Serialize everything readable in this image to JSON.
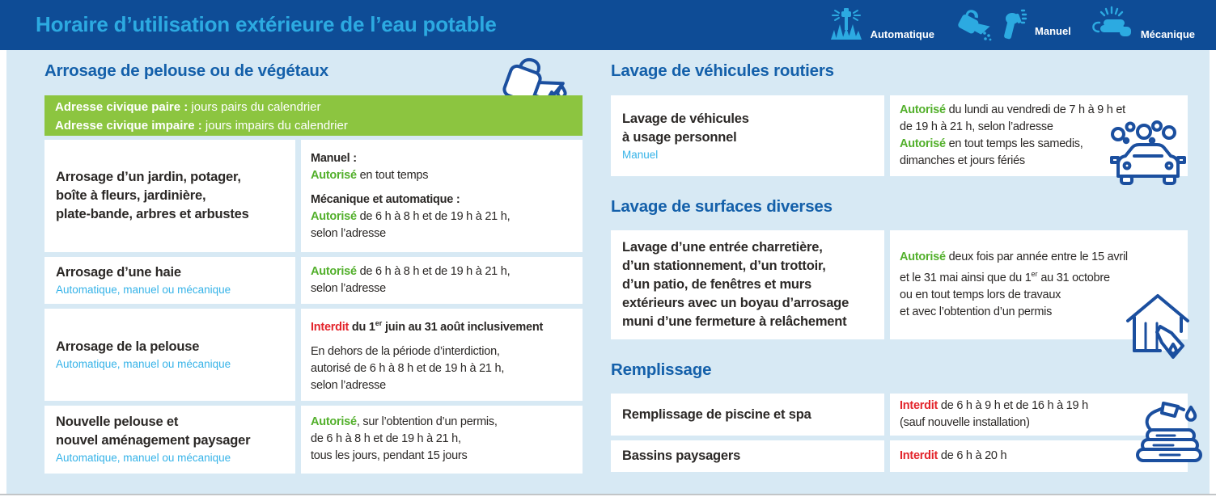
{
  "header": {
    "title": "Horaire d’utilisation extérieure de l’eau potable",
    "legend": [
      {
        "icon": "sprinkler-icon",
        "label": "Automatique"
      },
      {
        "icon": "watering-can-nozzle-icon",
        "label": "Manuel"
      },
      {
        "icon": "hose-reel-icon",
        "label": "Mécanique"
      }
    ]
  },
  "colors": {
    "header_bg": "#0E4C96",
    "title_blue": "#2CAAE1",
    "section_title_blue": "#1460AA",
    "background_blue": "#D7E9F4",
    "banner_green": "#8CC540",
    "allowed_green": "#53B02C",
    "forbidden_red": "#E3242B",
    "text_dark": "#2B2826",
    "mode_blue": "#36B3E8",
    "icon_navy": "#1B4F9F"
  },
  "sections": {
    "arrosage": {
      "title": "Arrosage de pelouse ou de végétaux",
      "icon": "watering-can-icon",
      "banner": [
        {
          "bold": "Adresse civique paire :",
          "text": " jours pairs du calendrier"
        },
        {
          "bold": "Adresse civique impaire :",
          "text": " jours impairs du calendrier"
        }
      ],
      "rows": [
        {
          "title": "Arrosage d’un jardin, potager,\nboîte à fleurs, jardinière,\nplate-bande, arbres et arbustes",
          "subtitle": "",
          "blocks": [
            [
              {
                "s": "b",
                "t": "Manuel :"
              },
              {
                "t": "\n"
              },
              {
                "s": "g",
                "t": "Autorisé"
              },
              {
                "t": " en tout temps"
              }
            ],
            [
              {
                "s": "b",
                "t": "Mécanique et automatique :"
              },
              {
                "t": "\n"
              },
              {
                "s": "g",
                "t": "Autorisé"
              },
              {
                "t": " de 6 h à 8 h et de 19 h à 21 h,\nselon l’adresse"
              }
            ]
          ]
        },
        {
          "title": "Arrosage d’une haie",
          "subtitle": "Automatique, manuel ou mécanique",
          "blocks": [
            [
              {
                "s": "g",
                "t": "Autorisé"
              },
              {
                "t": " de 6 h à 8 h et de 19 h à 21 h,\nselon l’adresse"
              }
            ]
          ]
        },
        {
          "title": "Arrosage de la pelouse",
          "subtitle": "Automatique, manuel ou mécanique",
          "blocks": [
            [
              {
                "s": "r",
                "t": "Interdit"
              },
              {
                "s": "b",
                "t": " du 1"
              },
              {
                "s": "bsup",
                "t": "er"
              },
              {
                "s": "b",
                "t": " juin au 31 août inclusivement"
              }
            ],
            [
              {
                "t": "En dehors de la période d’interdiction,\nautorisé de 6 h à 8 h et de 19 h à 21 h,\nselon l’adresse"
              }
            ]
          ]
        },
        {
          "title": "Nouvelle pelouse et\nnouvel aménagement paysager",
          "subtitle": "Automatique, manuel ou mécanique",
          "blocks": [
            [
              {
                "s": "g",
                "t": "Autorisé"
              },
              {
                "t": ", sur l’obtention d’un permis,\nde 6 h à 8 h et de 19 h à 21 h,\ntous les jours, pendant 15 jours"
              }
            ]
          ]
        }
      ]
    },
    "vehicules": {
      "title": "Lavage de véhicules routiers",
      "icon": "car-wash-icon",
      "rows": [
        {
          "title": "Lavage de véhicules\nà usage personnel",
          "subtitle": "Manuel",
          "blocks": [
            [
              {
                "s": "g",
                "t": "Autorisé"
              },
              {
                "t": " du lundi au vendredi de 7 h à 9 h et\nde 19 h à 21 h, selon l’adresse\n"
              },
              {
                "s": "g",
                "t": "Autorisé"
              },
              {
                "t": " en tout temps les samedis,\ndimanches et jours fériés"
              }
            ]
          ]
        }
      ]
    },
    "surfaces": {
      "title": "Lavage de surfaces diverses",
      "icon": "pressure-washer-house-icon",
      "rows": [
        {
          "title": "Lavage d’une entrée charretière,\nd’un stationnement, d’un trottoir,\nd’un patio, de fenêtres et murs\nextérieurs avec un boyau d’arrosage\nmuni d’une fermeture à relâchement",
          "subtitle": "",
          "blocks": [
            [
              {
                "s": "g",
                "t": "Autorisé"
              },
              {
                "t": " deux fois par année entre le 15 avril\net le 31 mai ainsi que du 1"
              },
              {
                "s": "sup",
                "t": "er"
              },
              {
                "t": " au 31 octobre\nou en tout temps lors de travaux\net avec l’obtention d’un permis"
              }
            ]
          ]
        }
      ]
    },
    "remplissage": {
      "title": "Remplissage",
      "icon": "garden-hose-icon",
      "rows": [
        {
          "title": "Remplissage de piscine et spa",
          "subtitle": "",
          "blocks": [
            [
              {
                "s": "r",
                "t": "Interdit"
              },
              {
                "t": " de 6 h à 9 h et de 16 h à 19 h\n(sauf nouvelle installation)"
              }
            ]
          ]
        },
        {
          "title": "Bassins paysagers",
          "subtitle": "",
          "blocks": [
            [
              {
                "s": "r",
                "t": "Interdit"
              },
              {
                "t": " de 6 h à 20 h"
              }
            ]
          ]
        }
      ]
    }
  }
}
